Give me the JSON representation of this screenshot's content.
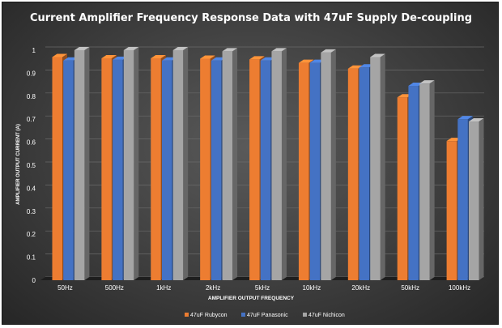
{
  "chart_data": {
    "type": "bar",
    "title": "Current Amplifier Frequency Response Data with 47uF Supply De-coupling",
    "xlabel": "AMPLIFIER OUTPUT FREQUENCY",
    "ylabel": "AMPLIFIER OUTPUT CURRENT (A)",
    "categories": [
      "50Hz",
      "500Hz",
      "1kHz",
      "2kHz",
      "5kHz",
      "10kHz",
      "20kHz",
      "50kHz",
      "100kHz"
    ],
    "ylim": [
      0,
      1
    ],
    "yticks": [
      "0",
      "0.1",
      "0.2",
      "0.3",
      "0.4",
      "0.5",
      "0.6",
      "0.7",
      "0.8",
      "0.9",
      "1"
    ],
    "grid": true,
    "legend_position": "bottom",
    "series": [
      {
        "name": "47uF Rubycon",
        "color": "#ed7d31",
        "values": [
          0.97,
          0.965,
          0.965,
          0.963,
          0.96,
          0.945,
          0.92,
          0.795,
          0.605
        ]
      },
      {
        "name": "47uF Panasonic",
        "color": "#4472c4",
        "values": [
          0.955,
          0.958,
          0.955,
          0.955,
          0.955,
          0.945,
          0.925,
          0.845,
          0.7
        ]
      },
      {
        "name": "47uF Nichicon",
        "color": "#a5a5a5",
        "values": [
          1.0,
          1.0,
          1.0,
          0.995,
          0.995,
          0.99,
          0.97,
          0.855,
          0.69
        ]
      }
    ]
  }
}
